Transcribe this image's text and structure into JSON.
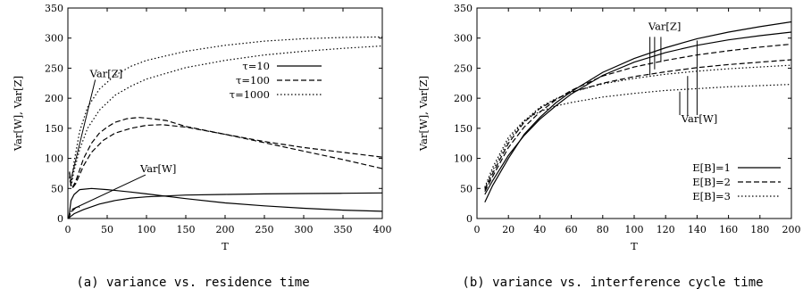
{
  "chart_data": [
    {
      "type": "line",
      "caption": "(a) variance vs. residence time",
      "xlabel": "T",
      "ylabel": "Var[W], Var[Z]",
      "xlim": [
        0,
        400
      ],
      "ylim": [
        0,
        350
      ],
      "xticks": [
        "0",
        "50",
        "100",
        "150",
        "200",
        "250",
        "300",
        "350",
        "400"
      ],
      "yticks": [
        "0",
        "50",
        "100",
        "150",
        "200",
        "250",
        "300",
        "350"
      ],
      "legend_position": "right",
      "legend": [
        {
          "label": "τ=10",
          "dash": "solid"
        },
        {
          "label": "τ=100",
          "dash": "dashed"
        },
        {
          "label": "τ=1000",
          "dash": "dotted"
        }
      ],
      "annotations": [
        {
          "text": "Var[Z]",
          "x": 28,
          "y": 235,
          "target_x": 3,
          "target_y": 60
        },
        {
          "text": "Var[W]",
          "x": 92,
          "y": 77,
          "target_x": 5,
          "target_y": 15
        }
      ],
      "series": [
        {
          "legend": "τ=10",
          "dash": "solid",
          "points": [
            [
              1,
              0
            ],
            [
              4,
              30
            ],
            [
              8,
              40
            ],
            [
              15,
              48
            ],
            [
              30,
              50
            ],
            [
              50,
              48
            ],
            [
              80,
              44
            ],
            [
              100,
              41
            ],
            [
              150,
              33
            ],
            [
              200,
              26
            ],
            [
              250,
              21
            ],
            [
              300,
              17
            ],
            [
              350,
              14
            ],
            [
              400,
              12
            ]
          ]
        },
        {
          "legend": "τ=10",
          "dash": "solid",
          "points": [
            [
              1,
              0
            ],
            [
              3,
              3
            ],
            [
              8,
              8
            ],
            [
              20,
              15
            ],
            [
              40,
              24
            ],
            [
              60,
              30
            ],
            [
              80,
              34
            ],
            [
              100,
              36
            ],
            [
              150,
              39
            ],
            [
              200,
              40
            ],
            [
              250,
              41
            ],
            [
              300,
              41.5
            ],
            [
              350,
              42
            ],
            [
              400,
              42.5
            ]
          ]
        },
        {
          "legend": "τ=100",
          "dash": "dashed",
          "points": [
            [
              2,
              78
            ],
            [
              4,
              55
            ],
            [
              6,
              52
            ],
            [
              10,
              62
            ],
            [
              20,
              100
            ],
            [
              30,
              125
            ],
            [
              40,
              142
            ],
            [
              50,
              152
            ],
            [
              60,
              160
            ],
            [
              75,
              166
            ],
            [
              90,
              168
            ],
            [
              100,
              167
            ],
            [
              125,
              163
            ],
            [
              150,
              153
            ],
            [
              200,
              140
            ],
            [
              250,
              128
            ],
            [
              300,
              118
            ],
            [
              350,
              110
            ],
            [
              400,
              102
            ]
          ]
        },
        {
          "legend": "τ=100",
          "dash": "dashed",
          "points": [
            [
              2,
              76
            ],
            [
              4,
              55
            ],
            [
              6,
              51
            ],
            [
              10,
              58
            ],
            [
              20,
              88
            ],
            [
              30,
              110
            ],
            [
              45,
              130
            ],
            [
              60,
              142
            ],
            [
              80,
              150
            ],
            [
              100,
              155
            ],
            [
              120,
              156
            ],
            [
              150,
              152
            ],
            [
              200,
              140
            ],
            [
              250,
              126
            ],
            [
              300,
              112
            ],
            [
              350,
              98
            ],
            [
              400,
              83
            ]
          ]
        },
        {
          "legend": "τ=100",
          "dash": "dashed",
          "points": [
            [
              1,
              0
            ],
            [
              3,
              8
            ],
            [
              6,
              13
            ],
            [
              10,
              18
            ],
            [
              15,
              19
            ]
          ]
        },
        {
          "legend": "τ=1000",
          "dash": "dotted",
          "points": [
            [
              2,
              70
            ],
            [
              4,
              55
            ],
            [
              8,
              95
            ],
            [
              15,
              145
            ],
            [
              25,
              185
            ],
            [
              40,
              215
            ],
            [
              60,
              238
            ],
            [
              80,
              253
            ],
            [
              100,
              263
            ],
            [
              150,
              278
            ],
            [
              200,
              288
            ],
            [
              250,
              295
            ],
            [
              300,
              299
            ],
            [
              350,
              301
            ],
            [
              400,
              302
            ]
          ]
        },
        {
          "legend": "τ=1000",
          "dash": "dotted",
          "points": [
            [
              2,
              68
            ],
            [
              4,
              52
            ],
            [
              8,
              80
            ],
            [
              15,
              115
            ],
            [
              25,
              150
            ],
            [
              40,
              180
            ],
            [
              60,
              205
            ],
            [
              80,
              220
            ],
            [
              100,
              232
            ],
            [
              150,
              251
            ],
            [
              200,
              263
            ],
            [
              250,
              272
            ],
            [
              300,
              278
            ],
            [
              350,
              283
            ],
            [
              400,
              287
            ]
          ]
        },
        {
          "legend": "τ=1000",
          "dash": "dotted",
          "points": [
            [
              1,
              0
            ],
            [
              3,
              10
            ],
            [
              6,
              15
            ],
            [
              10,
              18
            ],
            [
              15,
              20
            ]
          ]
        }
      ]
    },
    {
      "type": "line",
      "caption": "(b) variance vs. interference cycle time",
      "xlabel": "T",
      "ylabel": "Var[W], Var[Z]",
      "xlim": [
        0,
        200
      ],
      "ylim": [
        0,
        350
      ],
      "xticks": [
        "0",
        "20",
        "40",
        "60",
        "80",
        "100",
        "120",
        "140",
        "160",
        "180",
        "200"
      ],
      "yticks": [
        "0",
        "50",
        "100",
        "150",
        "200",
        "250",
        "300",
        "350"
      ],
      "legend_position": "bottom-right",
      "legend": [
        {
          "label": "E[B]=1",
          "dash": "solid"
        },
        {
          "label": "E[B]=2",
          "dash": "dashed"
        },
        {
          "label": "E[B]=3",
          "dash": "dotted"
        }
      ],
      "annotations": [
        {
          "text": "Var[Z]",
          "x": 109,
          "y": 314
        },
        {
          "text": "Var[W]",
          "x": 130,
          "y": 160
        }
      ],
      "series": [
        {
          "legend": "E[B]=1",
          "dash": "solid",
          "points": [
            [
              5,
              27
            ],
            [
              10,
              55
            ],
            [
              20,
              100
            ],
            [
              30,
              140
            ],
            [
              40,
              168
            ],
            [
              50,
              192
            ],
            [
              60,
              211
            ],
            [
              80,
              243
            ],
            [
              100,
              266
            ],
            [
              120,
              284
            ],
            [
              140,
              299
            ],
            [
              160,
              310
            ],
            [
              180,
              319
            ],
            [
              200,
              327
            ]
          ]
        },
        {
          "legend": "E[B]=1",
          "dash": "solid",
          "points": [
            [
              5,
              40
            ],
            [
              10,
              63
            ],
            [
              20,
              105
            ],
            [
              30,
              138
            ],
            [
              40,
              165
            ],
            [
              50,
              187
            ],
            [
              60,
              207
            ],
            [
              80,
              238
            ],
            [
              100,
              260
            ],
            [
              120,
              276
            ],
            [
              140,
              288
            ],
            [
              160,
              297
            ],
            [
              180,
              304
            ],
            [
              200,
              310
            ]
          ]
        },
        {
          "legend": "E[B]=2",
          "dash": "dashed",
          "points": [
            [
              5,
              45
            ],
            [
              10,
              70
            ],
            [
              20,
              118
            ],
            [
              30,
              152
            ],
            [
              40,
              177
            ],
            [
              50,
              197
            ],
            [
              60,
              213
            ],
            [
              80,
              237
            ],
            [
              100,
              252
            ],
            [
              120,
              263
            ],
            [
              140,
              272
            ],
            [
              160,
              279
            ],
            [
              180,
              285
            ],
            [
              200,
              290
            ]
          ]
        },
        {
          "legend": "E[B]=2",
          "dash": "dashed",
          "points": [
            [
              5,
              48
            ],
            [
              10,
              75
            ],
            [
              20,
              125
            ],
            [
              30,
              160
            ],
            [
              40,
              183
            ],
            [
              50,
              198
            ],
            [
              60,
              210
            ],
            [
              80,
              225
            ],
            [
              100,
              236
            ],
            [
              120,
              244
            ],
            [
              140,
              251
            ],
            [
              160,
              256
            ],
            [
              180,
              260
            ],
            [
              200,
              264
            ]
          ]
        },
        {
          "legend": "E[B]=3",
          "dash": "dotted",
          "points": [
            [
              5,
              50
            ],
            [
              10,
              80
            ],
            [
              20,
              130
            ],
            [
              30,
              162
            ],
            [
              40,
              185
            ],
            [
              50,
              199
            ],
            [
              60,
              210
            ],
            [
              80,
              224
            ],
            [
              100,
              233
            ],
            [
              120,
              240
            ],
            [
              140,
              245
            ],
            [
              160,
              249
            ],
            [
              180,
              252
            ],
            [
              200,
              255
            ]
          ]
        },
        {
          "legend": "E[B]=3",
          "dash": "dotted",
          "points": [
            [
              5,
              52
            ],
            [
              10,
              85
            ],
            [
              20,
              135
            ],
            [
              30,
              163
            ],
            [
              40,
              178
            ],
            [
              50,
              187
            ],
            [
              60,
              193
            ],
            [
              80,
              202
            ],
            [
              100,
              208
            ],
            [
              120,
              213
            ],
            [
              140,
              216
            ],
            [
              160,
              219
            ],
            [
              180,
              221
            ],
            [
              200,
              223
            ]
          ]
        }
      ]
    }
  ]
}
